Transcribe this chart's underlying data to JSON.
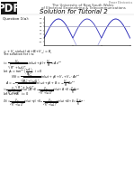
{
  "background_color": "#ffffff",
  "page_width": 1.49,
  "page_height": 1.98,
  "header_line1": "The University of New South Wales",
  "header_line2": "of Electrical Engineering & Telecommunications",
  "title": "Solution for Tutorial 2",
  "question_label": "Question 1(a):",
  "pdf_text": "PDF",
  "pdf_bg": "#1a1a1a",
  "pdf_fg": "#ffffff",
  "top_right_text": "Power Electronics",
  "plot_line_color": "#3333bb",
  "plot_avg_color": "#aaaaaa",
  "plot_bg": "#ffffff",
  "text_color": "#111111",
  "gray_text": "#777777"
}
